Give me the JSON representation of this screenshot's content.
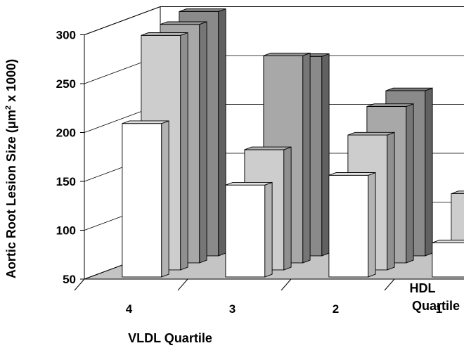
{
  "chart_data": {
    "type": "bar3d",
    "title": "",
    "ylabel": "Aortic Root Lesion Size (μm² x 1000)",
    "ylabel_parts": {
      "before": "Aortic Root Lesion Size (",
      "mu": "μm",
      "sup": "2",
      "after": " x 1000)"
    },
    "xlabel": "VLDL Quartile",
    "zlabel_line1": "HDL",
    "zlabel_line2": "Quartile",
    "ylim": [
      50,
      300
    ],
    "yticks": [
      "50",
      "100",
      "150",
      "200",
      "250",
      "300"
    ],
    "x_categories": [
      "4",
      "3",
      "2",
      "1"
    ],
    "z_categories": [
      "4",
      "3",
      "2",
      "1"
    ],
    "series": [
      {
        "hdl_quartile": "4",
        "color": "#ffffff",
        "values": [
          207,
          144,
          154,
          85
        ]
      },
      {
        "hdl_quartile": "3",
        "color": "#cdcdcd",
        "values": [
          290,
          173,
          188,
          128
        ]
      },
      {
        "hdl_quartile": "2",
        "color": "#a8a8a8",
        "values": [
          294,
          262,
          210,
          135
        ]
      },
      {
        "hdl_quartile": "1",
        "color": "#8a8a8a",
        "values": [
          300,
          254,
          219,
          195
        ]
      }
    ]
  }
}
